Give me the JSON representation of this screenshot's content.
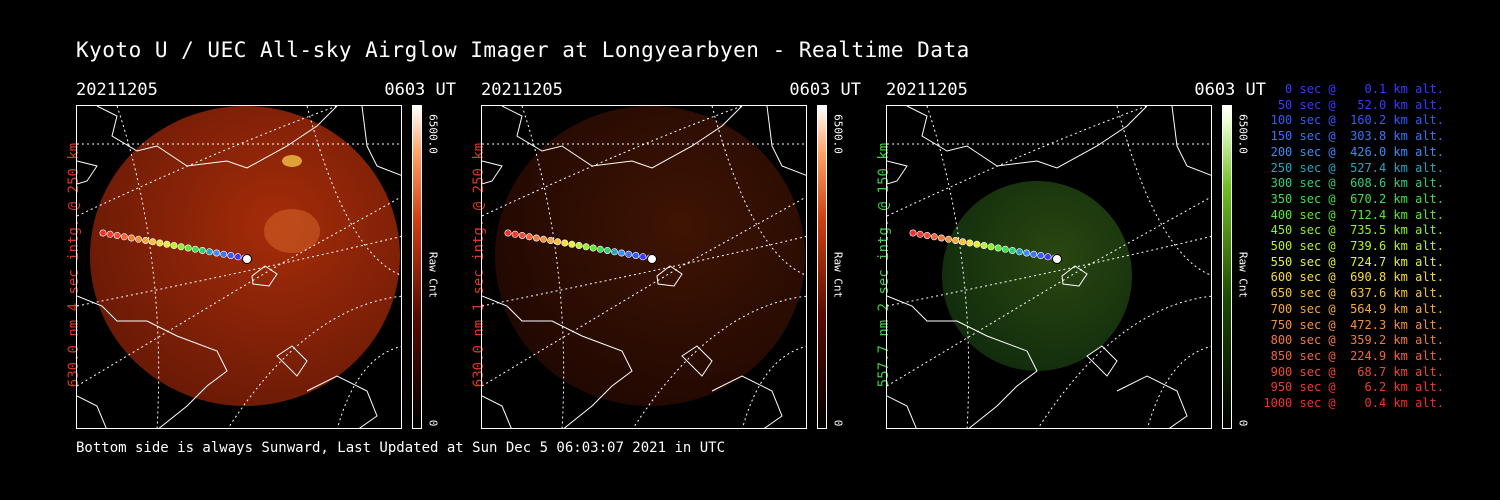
{
  "title": "Kyoto U / UEC All-sky Airglow Imager at Longyearbyen - Realtime Data",
  "footer": "Bottom side is always Sunward, Last Updated at Sun Dec  5 06:03:07 2021 in UTC",
  "colors": {
    "red": "#e0361f",
    "green": "#3fcf3f",
    "background": "#000000"
  },
  "panels": [
    {
      "date": "20211205",
      "time": "0603 UT",
      "label": "630.0 nm 4 sec intg. @ 250 km",
      "cbar_max": "6500.0",
      "cbar_unit": "Raw Cnt",
      "cbar_min": "0",
      "color": "red",
      "intensity": 0.85
    },
    {
      "date": "20211205",
      "time": "0603 UT",
      "label": "630.0 nm 1 sec intg. @ 250 km",
      "cbar_max": "6500.0",
      "cbar_unit": "Raw Cnt",
      "cbar_min": "0",
      "color": "red",
      "intensity": 0.25
    },
    {
      "date": "20211205",
      "time": "0603 UT",
      "label": "557.7 nm 2 sec intg. @ 150 km",
      "cbar_max": "6500.0",
      "cbar_unit": "Raw Cnt",
      "cbar_min": "0",
      "color": "green",
      "intensity": 0.55
    }
  ],
  "legend": [
    {
      "text": "   0 sec @    0.1 km alt.",
      "color": "#3a3aff"
    },
    {
      "text": "  50 sec @   52.0 km alt.",
      "color": "#3a3aff"
    },
    {
      "text": " 100 sec @  160.2 km alt.",
      "color": "#2f5cff"
    },
    {
      "text": " 150 sec @  303.8 km alt.",
      "color": "#3a74ff"
    },
    {
      "text": " 200 sec @  426.0 km alt.",
      "color": "#3a8cff"
    },
    {
      "text": " 250 sec @  527.4 km alt.",
      "color": "#27a6c4"
    },
    {
      "text": " 300 sec @  608.6 km alt.",
      "color": "#2fd07a"
    },
    {
      "text": " 350 sec @  670.2 km alt.",
      "color": "#3fe04a"
    },
    {
      "text": " 400 sec @  712.4 km alt.",
      "color": "#5aea2f"
    },
    {
      "text": " 450 sec @  735.5 km alt.",
      "color": "#8ef02a"
    },
    {
      "text": " 500 sec @  739.6 km alt.",
      "color": "#b8f22a"
    },
    {
      "text": " 550 sec @  724.7 km alt.",
      "color": "#e3f03a"
    },
    {
      "text": " 600 sec @  690.8 km alt.",
      "color": "#f5dd3a"
    },
    {
      "text": " 650 sec @  637.6 km alt.",
      "color": "#f5c23a"
    },
    {
      "text": " 700 sec @  564.9 km alt.",
      "color": "#f5a93a"
    },
    {
      "text": " 750 sec @  472.3 km alt.",
      "color": "#f5913a"
    },
    {
      "text": " 800 sec @  359.2 km alt.",
      "color": "#f57a3a"
    },
    {
      "text": " 850 sec @  224.9 km alt.",
      "color": "#f5623a"
    },
    {
      "text": " 900 sec @   68.7 km alt.",
      "color": "#f04a2f"
    },
    {
      "text": " 950 sec @    6.2 km alt.",
      "color": "#f03a2f"
    },
    {
      "text": "1000 sec @    0.4 km alt.",
      "color": "#f0302f"
    }
  ]
}
